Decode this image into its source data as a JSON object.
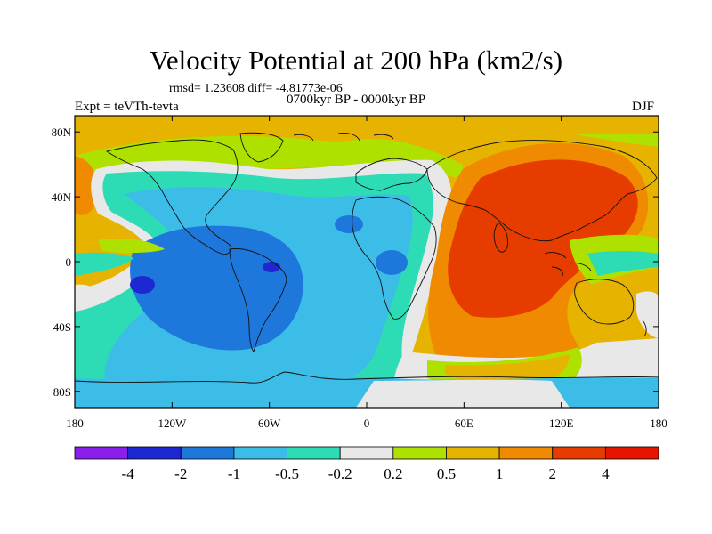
{
  "title": "Velocity Potential at 200 hPa (km2/s)",
  "stats": "rmsd= 1.23608 diff= -4.81773e-06",
  "left_label": "Expt = teVTh-tevta",
  "center_label": "0700kyr BP - 0000kyr BP",
  "right_label": "DJF",
  "map": {
    "projection": "cylindrical-equidistant",
    "lon_range": [
      -180,
      180
    ],
    "lat_range": [
      -90,
      90
    ],
    "coastlines": true,
    "y_ticks": [
      {
        "lat": 80,
        "label": "80N"
      },
      {
        "lat": 40,
        "label": "40N"
      },
      {
        "lat": 0,
        "label": "0"
      },
      {
        "lat": -40,
        "label": "40S"
      },
      {
        "lat": -80,
        "label": "80S"
      }
    ],
    "x_ticks": [
      {
        "lon": -180,
        "label": "180"
      },
      {
        "lon": -120,
        "label": "120W"
      },
      {
        "lon": -60,
        "label": "60W"
      },
      {
        "lon": 0,
        "label": "0"
      },
      {
        "lon": 60,
        "label": "60E"
      },
      {
        "lon": 120,
        "label": "120E"
      },
      {
        "lon": 180,
        "label": "180"
      }
    ],
    "regions": [
      {
        "level": "0.5 to 1",
        "color": "#e6b400",
        "description": "arctic band"
      },
      {
        "level": "1 to 2",
        "color": "#f08a00",
        "description": "dateline high latitude"
      },
      {
        "level": "-1 to -0.5",
        "color": "#3cbde7",
        "description": "Americas and Atlantic"
      },
      {
        "level": "-2 to -1",
        "color": "#1e78dc",
        "description": "eastern Pacific / South America core"
      },
      {
        "level": "-4 to -2",
        "color": "#1e28d2",
        "description": "minima near 150W 15S and 55W 3S"
      },
      {
        "level": "2 to 4",
        "color": "#e63c00",
        "description": "Indian Ocean / Asia maximum"
      }
    ]
  },
  "colorbar": {
    "colors": [
      "#8a1eea",
      "#1e28d2",
      "#1e78dc",
      "#3cbde7",
      "#2ddcb4",
      "#e8e8e8",
      "#afe100",
      "#e6b400",
      "#f08a00",
      "#e63c00",
      "#e61400"
    ],
    "labels": [
      "-4",
      "-2",
      "-1",
      "-0.5",
      "-0.2",
      "0.2",
      "0.5",
      "1",
      "2",
      "4"
    ]
  }
}
